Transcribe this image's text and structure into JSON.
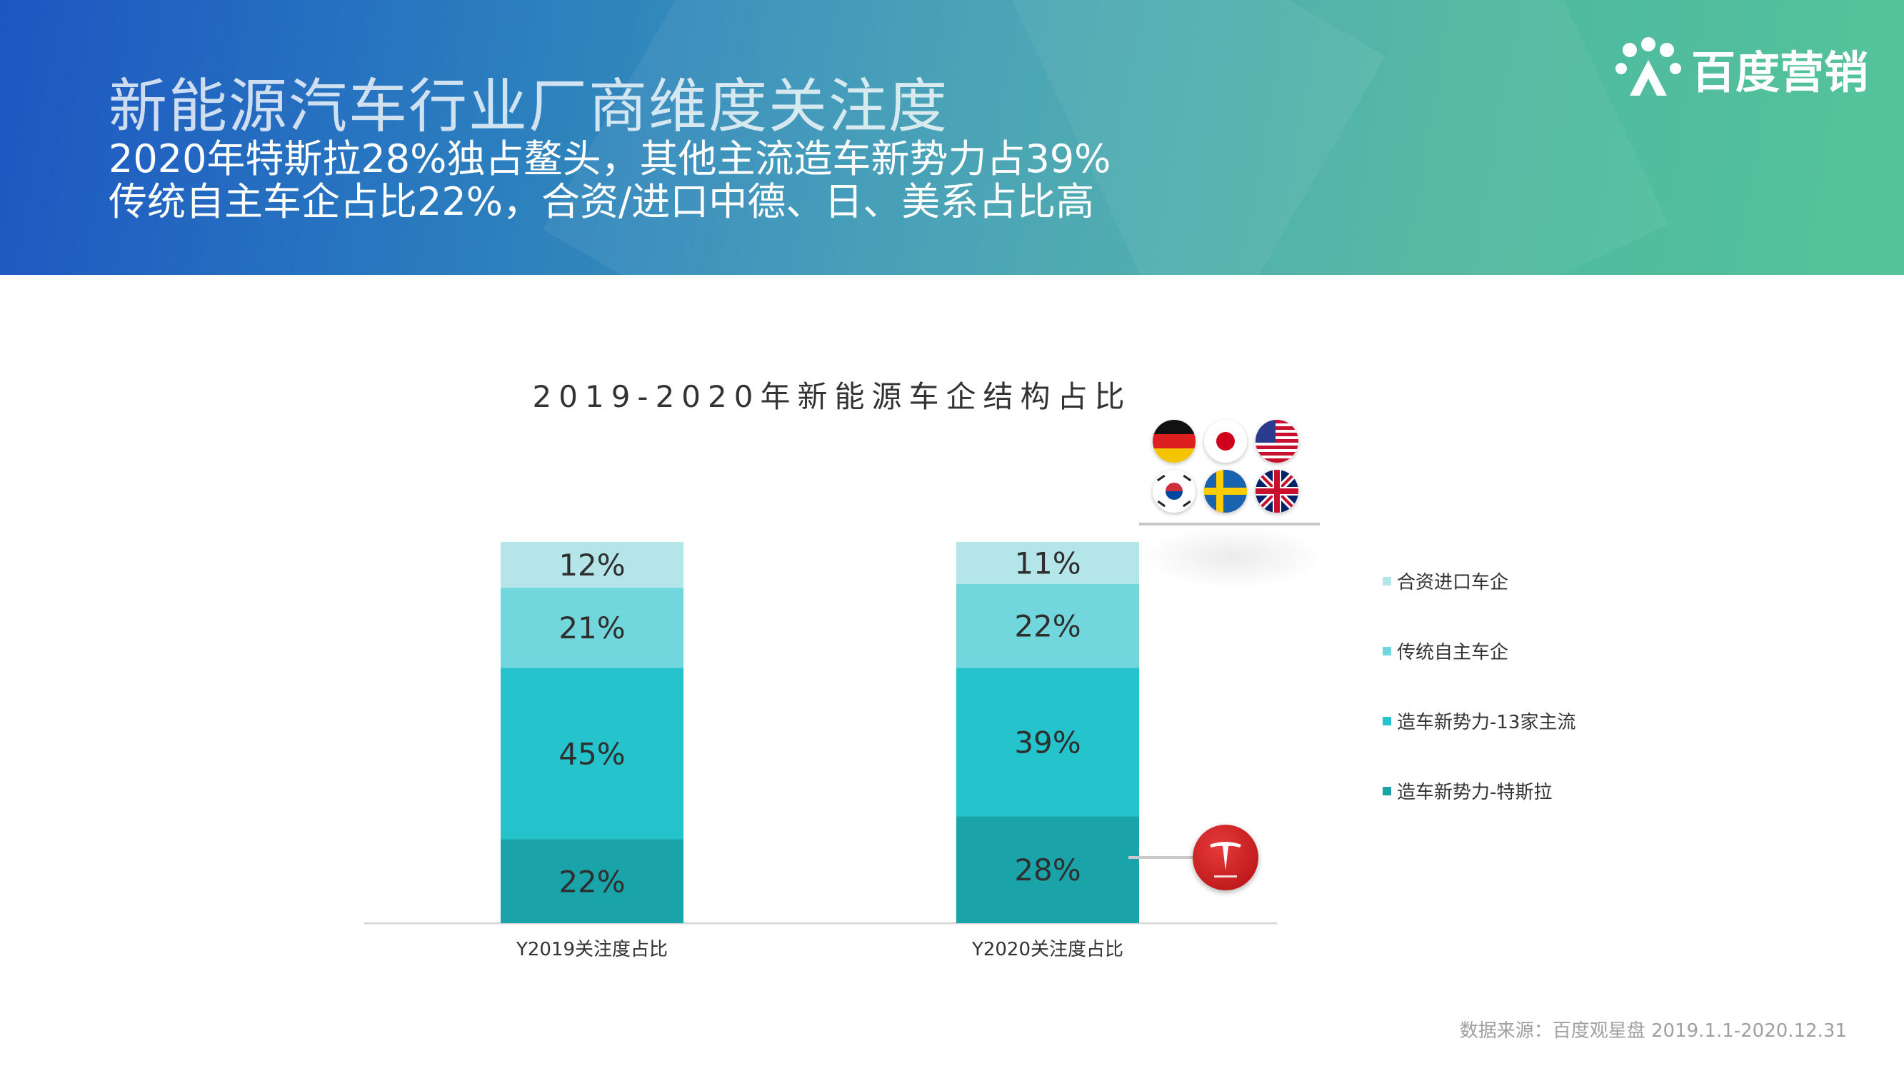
{
  "header": {
    "title": "新能源汽车行业厂商维度关注度",
    "subtitle_line1": "2020年特斯拉28%独占鳌头，其他主流造车新势力占39%",
    "subtitle_line2": "传统自主车企占比22%，合资/进口中德、日、美系占比高",
    "logo_text": "百度营销"
  },
  "chart_data": {
    "type": "bar",
    "stacked": true,
    "title": "2019-2020年新能源车企结构占比",
    "categories": [
      "Y2019关注度占比",
      "Y2020关注度占比"
    ],
    "series": [
      {
        "name": "造车新势力-特斯拉",
        "values": [
          22,
          28
        ],
        "labels": [
          "22%",
          "28%"
        ],
        "color": "#1aa3a8"
      },
      {
        "name": "造车新势力-13家主流",
        "values": [
          45,
          39
        ],
        "labels": [
          "45%",
          "39%"
        ],
        "color": "#25c3cb"
      },
      {
        "name": "传统自主车企",
        "values": [
          21,
          22
        ],
        "labels": [
          "21%",
          "22%"
        ],
        "color": "#72d7dc"
      },
      {
        "name": "合资进口车企",
        "values": [
          12,
          11
        ],
        "labels": [
          "12%",
          "11%"
        ],
        "color": "#b3e5e9"
      }
    ],
    "legend_position": "right",
    "grid": false
  },
  "icons": {
    "flags": [
      "germany-flag-icon",
      "japan-flag-icon",
      "usa-flag-icon",
      "korea-flag-icon",
      "sweden-flag-icon",
      "uk-flag-icon"
    ],
    "tesla": "tesla-logo-icon"
  },
  "footer": {
    "source": "数据来源：百度观星盘 2019.1.1-2020.12.31"
  }
}
